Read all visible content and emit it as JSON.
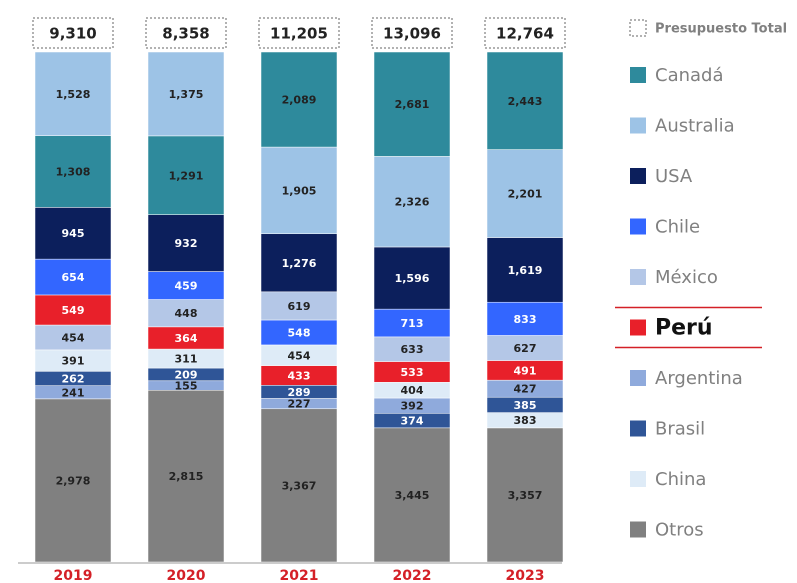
{
  "chart_data": {
    "type": "stacked_bar_normalized",
    "categories": [
      "2019",
      "2020",
      "2021",
      "2022",
      "2023"
    ],
    "totals": {
      "name": "Presupuesto Total",
      "values": [
        9310,
        8358,
        11205,
        13096,
        12764
      ],
      "value_labels": [
        "9,310",
        "8,358",
        "11,205",
        "13,096",
        "12,764"
      ]
    },
    "series": [
      {
        "name": "Canadá",
        "color": "#2e8a9c",
        "values": [
          1308,
          1291,
          2089,
          2681,
          2443
        ],
        "value_labels": [
          "1,308",
          "1,291",
          "2,089",
          "2,681",
          "2,443"
        ]
      },
      {
        "name": "Australia",
        "color": "#9dc3e6",
        "values": [
          1528,
          1375,
          1905,
          2326,
          2201
        ],
        "value_labels": [
          "1,528",
          "1,375",
          "1,905",
          "2,326",
          "2,201"
        ]
      },
      {
        "name": "USA",
        "color": "#0c1f5c",
        "values": [
          945,
          932,
          1276,
          1596,
          1619
        ],
        "value_labels": [
          "945",
          "932",
          "1,276",
          "1,596",
          "1,619"
        ]
      },
      {
        "name": "Chile",
        "color": "#3366ff",
        "values": [
          654,
          459,
          548,
          713,
          833
        ]
      },
      {
        "name": "México",
        "color": "#b4c7e7",
        "values": [
          454,
          448,
          619,
          633,
          627
        ]
      },
      {
        "name": "Perú",
        "color": "#e8202a",
        "values": [
          549,
          364,
          433,
          533,
          491
        ]
      },
      {
        "name": "Argentina",
        "color": "#8faadc",
        "values": [
          241,
          155,
          227,
          392,
          427
        ]
      },
      {
        "name": "Brasil",
        "color": "#2f5597",
        "values": [
          262,
          209,
          289,
          374,
          385
        ]
      },
      {
        "name": "China",
        "color": "#deebf7",
        "values": [
          391,
          311,
          454,
          404,
          383
        ]
      },
      {
        "name": "Otros",
        "color": "#808080",
        "values": [
          2978,
          2815,
          3367,
          3445,
          3357
        ],
        "value_labels": [
          "2,978",
          "2,815",
          "3,367",
          "3,445",
          "3,357"
        ]
      }
    ]
  }
}
